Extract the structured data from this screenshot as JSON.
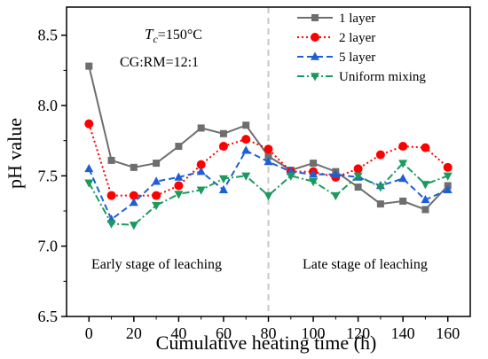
{
  "chart_data": {
    "type": "line",
    "xlabel": "Cumulative heating time (h)",
    "ylabel": "pH value",
    "xlim": [
      -10,
      170
    ],
    "ylim": [
      6.5,
      8.7
    ],
    "x_ticks": [
      0,
      20,
      40,
      60,
      80,
      100,
      120,
      140,
      160
    ],
    "y_ticks": [
      6.5,
      7.0,
      7.5,
      8.0,
      8.5
    ],
    "x_tick_labels": [
      "0",
      "20",
      "40",
      "60",
      "80",
      "100",
      "120",
      "140",
      "160"
    ],
    "y_tick_labels": [
      "6.5",
      "7.0",
      "7.5",
      "8.0",
      "8.5"
    ],
    "grid": false,
    "legend_position": "top-right",
    "divider_x": 80,
    "annotations": {
      "tc_symbol": "T",
      "tc_subscript": "c",
      "tc_value": "=150°C",
      "ratio": "CG:RM=12:1",
      "early_stage": "Early stage of leaching",
      "late_stage": "Late stage of leaching"
    },
    "x": [
      0,
      10,
      20,
      30,
      40,
      50,
      60,
      70,
      80,
      90,
      100,
      110,
      120,
      130,
      140,
      150,
      160
    ],
    "series": [
      {
        "name": "1 layer",
        "color": "#6e6e6e",
        "marker": "square",
        "dash": "solid",
        "values": [
          8.28,
          7.61,
          7.56,
          7.59,
          7.71,
          7.84,
          7.8,
          7.86,
          7.64,
          7.54,
          7.59,
          7.53,
          7.42,
          7.3,
          7.32,
          7.26,
          7.43
        ]
      },
      {
        "name": "2 layer",
        "color": "#ff0000",
        "marker": "circle",
        "dash": "dotted",
        "values": [
          7.87,
          7.36,
          7.36,
          7.36,
          7.43,
          7.58,
          7.71,
          7.76,
          7.69,
          7.53,
          7.53,
          7.49,
          7.55,
          7.65,
          7.71,
          7.7,
          7.56
        ]
      },
      {
        "name": "5 layer",
        "color": "#1f5fd6",
        "marker": "triangle-up",
        "dash": "dashed",
        "values": [
          7.55,
          7.19,
          7.31,
          7.46,
          7.49,
          7.53,
          7.4,
          7.68,
          7.6,
          7.53,
          7.51,
          7.51,
          7.49,
          7.43,
          7.48,
          7.33,
          7.4
        ]
      },
      {
        "name": "Uniform mixing",
        "color": "#1a9a5e",
        "marker": "triangle-down",
        "dash": "dashdot",
        "values": [
          7.45,
          7.16,
          7.15,
          7.29,
          7.37,
          7.4,
          7.48,
          7.5,
          7.36,
          7.5,
          7.46,
          7.36,
          7.5,
          7.42,
          7.59,
          7.44,
          7.5
        ]
      }
    ]
  }
}
